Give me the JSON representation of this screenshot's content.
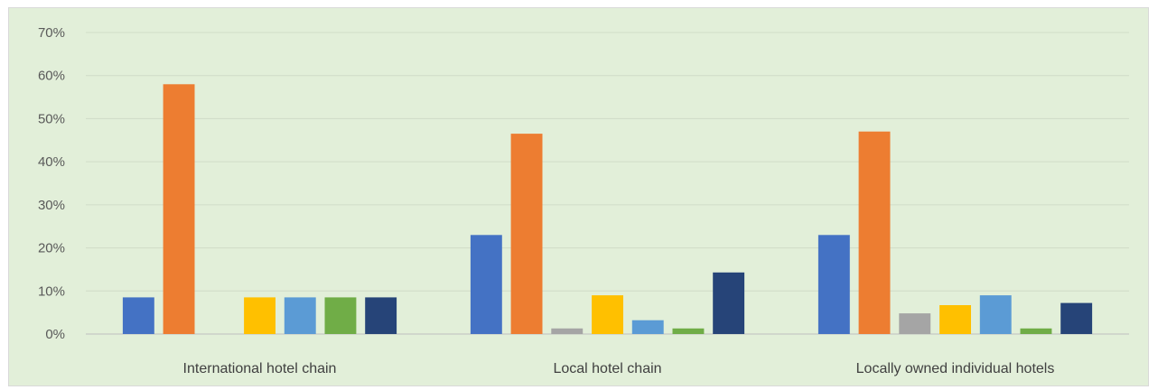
{
  "chart_data": {
    "type": "bar",
    "title": "",
    "xlabel": "",
    "ylabel": "",
    "ylim": [
      0,
      0.7
    ],
    "y_ticks": [
      "0%",
      "10%",
      "20%",
      "30%",
      "40%",
      "50%",
      "60%",
      "70%"
    ],
    "grid": true,
    "legend": "none",
    "categories": [
      "International hotel chain",
      "Local hotel chain",
      "Locally owned individual hotels"
    ],
    "series": [
      {
        "color": "#4472c4",
        "values": [
          0.085,
          0.23,
          0.23
        ]
      },
      {
        "color": "#ed7d31",
        "values": [
          0.58,
          0.465,
          0.47
        ]
      },
      {
        "color": "#a5a5a5",
        "values": [
          0.0,
          0.013,
          0.048
        ]
      },
      {
        "color": "#ffc000",
        "values": [
          0.085,
          0.09,
          0.067
        ]
      },
      {
        "color": "#5b9bd5",
        "values": [
          0.085,
          0.032,
          0.09
        ]
      },
      {
        "color": "#70ad47",
        "values": [
          0.085,
          0.013,
          0.013
        ]
      },
      {
        "color": "#264478",
        "values": [
          0.085,
          0.143,
          0.072
        ]
      }
    ]
  }
}
